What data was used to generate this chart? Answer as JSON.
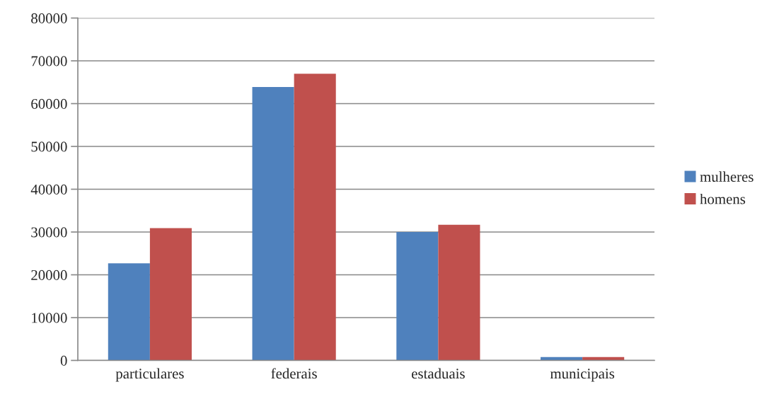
{
  "chart_data": {
    "type": "bar",
    "categories": [
      "particulares",
      "federais",
      "estaduais",
      "municipais"
    ],
    "series": [
      {
        "name": "mulheres",
        "color": "#4f81bd",
        "values": [
          22700,
          63900,
          30000,
          800
        ]
      },
      {
        "name": "homens",
        "color": "#c0504d",
        "values": [
          30900,
          67000,
          31700,
          800
        ]
      }
    ],
    "ylim": [
      0,
      80000
    ],
    "yticks": [
      0,
      10000,
      20000,
      30000,
      40000,
      50000,
      60000,
      70000,
      80000
    ],
    "grid": "y",
    "legend": "right"
  }
}
